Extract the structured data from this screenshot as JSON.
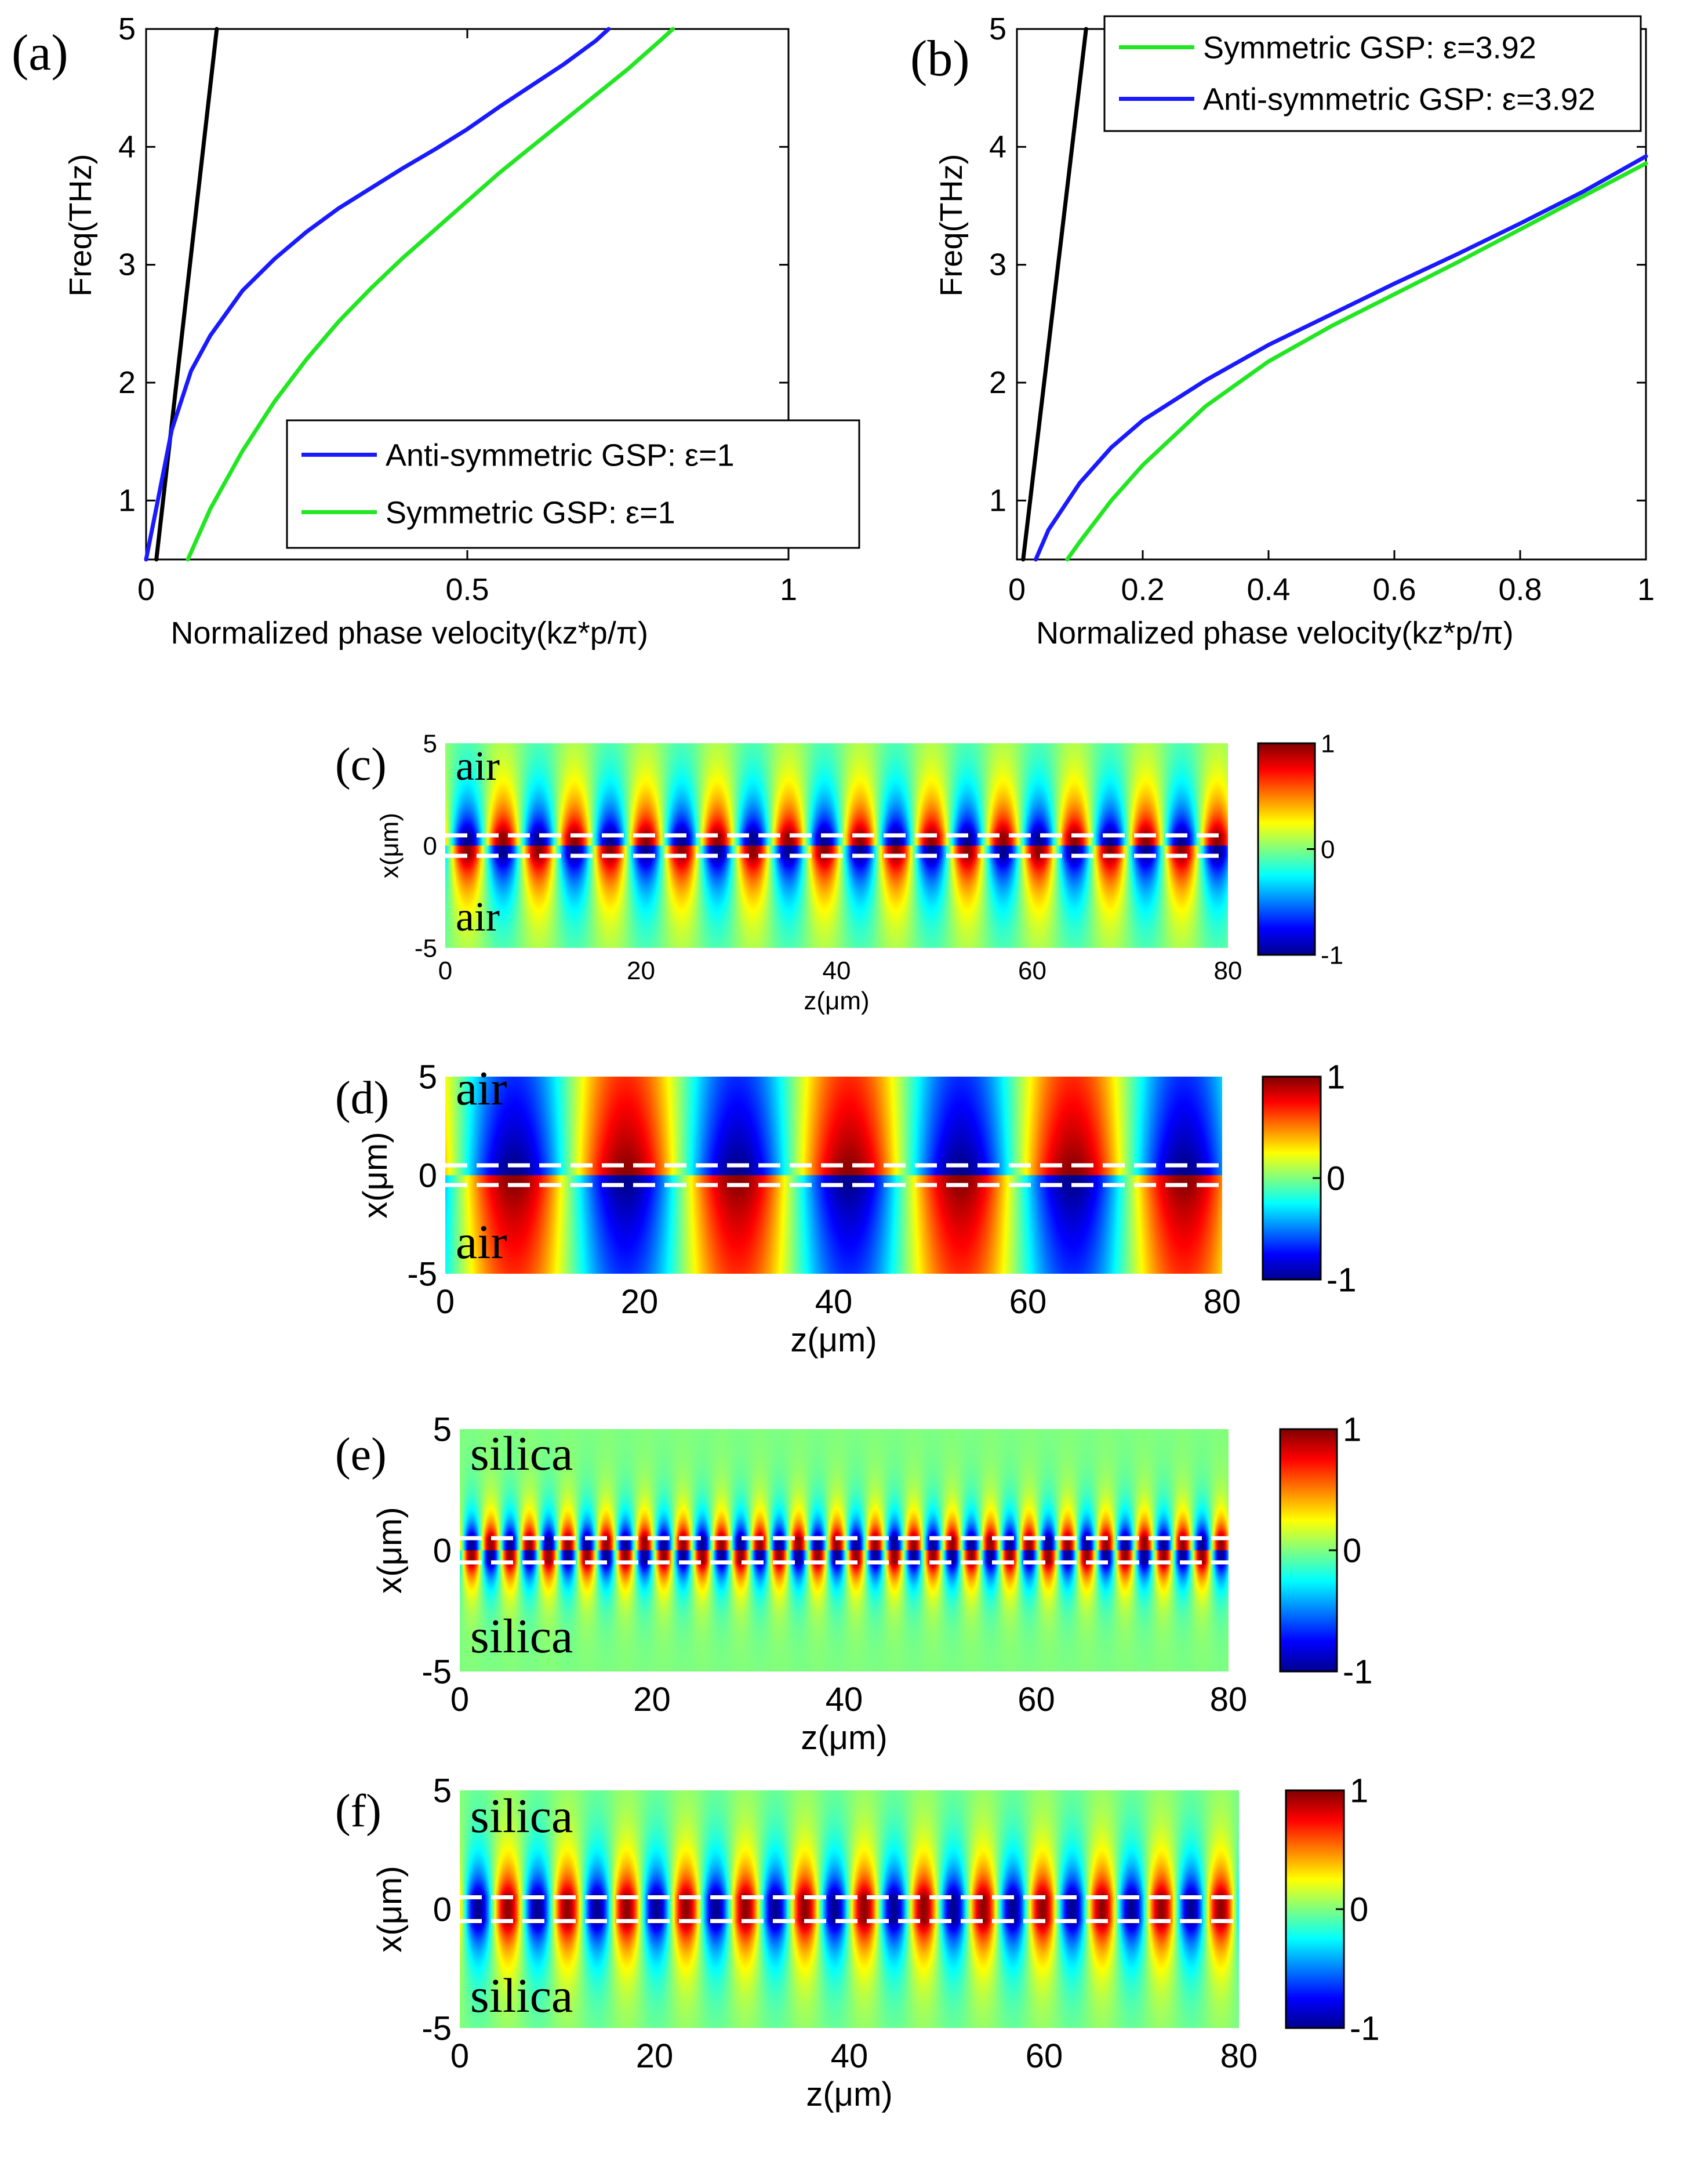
{
  "chart_data": [
    {
      "id": "a",
      "panel_label": "(a)",
      "type": "line",
      "xlabel": "Normalized phase velocity(kz*p/π)",
      "ylabel": "Freq(THz)",
      "xlim": [
        0,
        1
      ],
      "ylim": [
        0.5,
        5
      ],
      "xticks": [
        "0",
        "0.5",
        "1"
      ],
      "xtick_values": [
        0,
        0.5,
        1
      ],
      "yticks": [
        "1",
        "2",
        "3",
        "4",
        "5"
      ],
      "ytick_values": [
        1,
        2,
        3,
        4,
        5
      ],
      "legend_position": "bottom-right",
      "series": [
        {
          "name": "",
          "in_legend": false,
          "color": "#000000",
          "x": [
            0.016,
            0.11
          ],
          "y": [
            0.5,
            5.0
          ]
        },
        {
          "name": "Anti-symmetric GSP: ε=1",
          "in_legend": true,
          "color": "#1a1aff",
          "x": [
            0.0,
            0.02,
            0.04,
            0.07,
            0.1,
            0.15,
            0.2,
            0.25,
            0.3,
            0.35,
            0.4,
            0.45,
            0.5,
            0.55,
            0.6,
            0.65,
            0.7,
            0.72
          ],
          "y": [
            0.5,
            1.05,
            1.6,
            2.1,
            2.4,
            2.78,
            3.05,
            3.28,
            3.48,
            3.65,
            3.82,
            3.98,
            4.15,
            4.34,
            4.52,
            4.7,
            4.9,
            5.0
          ]
        },
        {
          "name": "Symmetric GSP: ε=1",
          "in_legend": true,
          "color": "#22e622",
          "x": [
            0.065,
            0.1,
            0.15,
            0.2,
            0.25,
            0.3,
            0.35,
            0.4,
            0.45,
            0.5,
            0.55,
            0.6,
            0.65,
            0.7,
            0.75,
            0.8,
            0.82
          ],
          "y": [
            0.5,
            0.93,
            1.42,
            1.84,
            2.2,
            2.52,
            2.8,
            3.06,
            3.3,
            3.54,
            3.78,
            4.0,
            4.22,
            4.44,
            4.66,
            4.9,
            5.0
          ]
        }
      ]
    },
    {
      "id": "b",
      "panel_label": "(b)",
      "type": "line",
      "xlabel": "Normalized phase velocity(kz*p/π)",
      "ylabel": "Freq(THz)",
      "xlim": [
        0,
        1
      ],
      "ylim": [
        0.5,
        5
      ],
      "xticks": [
        "0",
        "0.2",
        "0.4",
        "0.6",
        "0.8",
        "1"
      ],
      "xtick_values": [
        0,
        0.2,
        0.4,
        0.6,
        0.8,
        1
      ],
      "yticks": [
        "1",
        "2",
        "3",
        "4",
        "5"
      ],
      "ytick_values": [
        1,
        2,
        3,
        4,
        5
      ],
      "legend_position": "top-right",
      "series": [
        {
          "name": "",
          "in_legend": false,
          "color": "#000000",
          "x": [
            0.01,
            0.11
          ],
          "y": [
            0.5,
            5.0
          ]
        },
        {
          "name": "Symmetric GSP: ε=3.92",
          "in_legend": true,
          "color": "#22e622",
          "x": [
            0.08,
            0.1,
            0.15,
            0.2,
            0.3,
            0.4,
            0.5,
            0.6,
            0.7,
            0.8,
            0.9,
            1.0
          ],
          "y": [
            0.5,
            0.65,
            1.0,
            1.3,
            1.8,
            2.18,
            2.48,
            2.75,
            3.02,
            3.3,
            3.58,
            3.86
          ]
        },
        {
          "name": "Anti-symmetric GSP: ε=3.92",
          "in_legend": true,
          "color": "#1a1aff",
          "x": [
            0.03,
            0.05,
            0.1,
            0.15,
            0.2,
            0.3,
            0.4,
            0.5,
            0.6,
            0.7,
            0.8,
            0.9,
            1.0
          ],
          "y": [
            0.5,
            0.75,
            1.15,
            1.45,
            1.68,
            2.02,
            2.32,
            2.58,
            2.84,
            3.09,
            3.35,
            3.62,
            3.92
          ]
        }
      ]
    },
    {
      "id": "c",
      "panel_label": "(c)",
      "type": "heatmap",
      "xlabel": "z(μm)",
      "ylabel": "x(μm)",
      "xlim": [
        0,
        80
      ],
      "ylim": [
        -5,
        5
      ],
      "xticks": [
        "0",
        "20",
        "40",
        "60",
        "80"
      ],
      "xtick_values": [
        0,
        20,
        40,
        60,
        80
      ],
      "yticks": [
        "-5",
        "0",
        "5"
      ],
      "ytick_values": [
        -5,
        0,
        5
      ],
      "colorbar_ticks": [
        "-1",
        "0",
        "1"
      ],
      "colorbar_values": [
        -1,
        0,
        1
      ],
      "colormap": "jet",
      "top_medium": "air",
      "bottom_medium": "air",
      "field_period_um": 7.3,
      "decay_length_um": 2.0,
      "mode_parity": "anti-symmetric",
      "slab_boundaries_um": [
        -0.5,
        0.5
      ]
    },
    {
      "id": "d",
      "panel_label": "(d)",
      "type": "heatmap",
      "xlabel": "z(μm)",
      "ylabel": "x(μm)",
      "xlim": [
        0,
        80
      ],
      "ylim": [
        -5,
        5
      ],
      "xticks": [
        "0",
        "20",
        "40",
        "60",
        "80"
      ],
      "xtick_values": [
        0,
        20,
        40,
        60,
        80
      ],
      "yticks": [
        "-5",
        "0",
        "5"
      ],
      "ytick_values": [
        -5,
        0,
        5
      ],
      "colorbar_ticks": [
        "-1",
        "0",
        "1"
      ],
      "colorbar_values": [
        -1,
        0,
        1
      ],
      "colormap": "jet",
      "top_medium": "air",
      "bottom_medium": "air",
      "field_period_um": 23.0,
      "decay_length_um": 12.0,
      "mode_parity": "anti-symmetric",
      "slab_boundaries_um": [
        -0.5,
        0.5
      ]
    },
    {
      "id": "e",
      "panel_label": "(e)",
      "type": "heatmap",
      "xlabel": "z(μm)",
      "ylabel": "x(μm)",
      "xlim": [
        0,
        80
      ],
      "ylim": [
        -5,
        5
      ],
      "xticks": [
        "0",
        "20",
        "40",
        "60",
        "80"
      ],
      "xtick_values": [
        0,
        20,
        40,
        60,
        80
      ],
      "yticks": [
        "-5",
        "0",
        "5"
      ],
      "ytick_values": [
        -5,
        0,
        5
      ],
      "colorbar_ticks": [
        "-1",
        "0",
        "1"
      ],
      "colorbar_values": [
        -1,
        0,
        1
      ],
      "colormap": "jet",
      "top_medium": "silica",
      "bottom_medium": "silica",
      "field_period_um": 4.0,
      "decay_length_um": 0.9,
      "mode_parity": "anti-symmetric",
      "slab_boundaries_um": [
        -0.5,
        0.5
      ]
    },
    {
      "id": "f",
      "panel_label": "(f)",
      "type": "heatmap",
      "xlabel": "z(μm)",
      "ylabel": "x(μm)",
      "xlim": [
        0,
        80
      ],
      "ylim": [
        -5,
        5
      ],
      "xticks": [
        "0",
        "20",
        "40",
        "60",
        "80"
      ],
      "xtick_values": [
        0,
        20,
        40,
        60,
        80
      ],
      "yticks": [
        "-5",
        "0",
        "5"
      ],
      "ytick_values": [
        -5,
        0,
        5
      ],
      "colorbar_ticks": [
        "-1",
        "0",
        "1"
      ],
      "colorbar_values": [
        -1,
        0,
        1
      ],
      "colormap": "jet",
      "top_medium": "silica",
      "bottom_medium": "silica",
      "field_period_um": 6.1,
      "decay_length_um": 1.5,
      "mode_parity": "symmetric",
      "slab_boundaries_um": [
        -0.5,
        0.5
      ]
    }
  ]
}
